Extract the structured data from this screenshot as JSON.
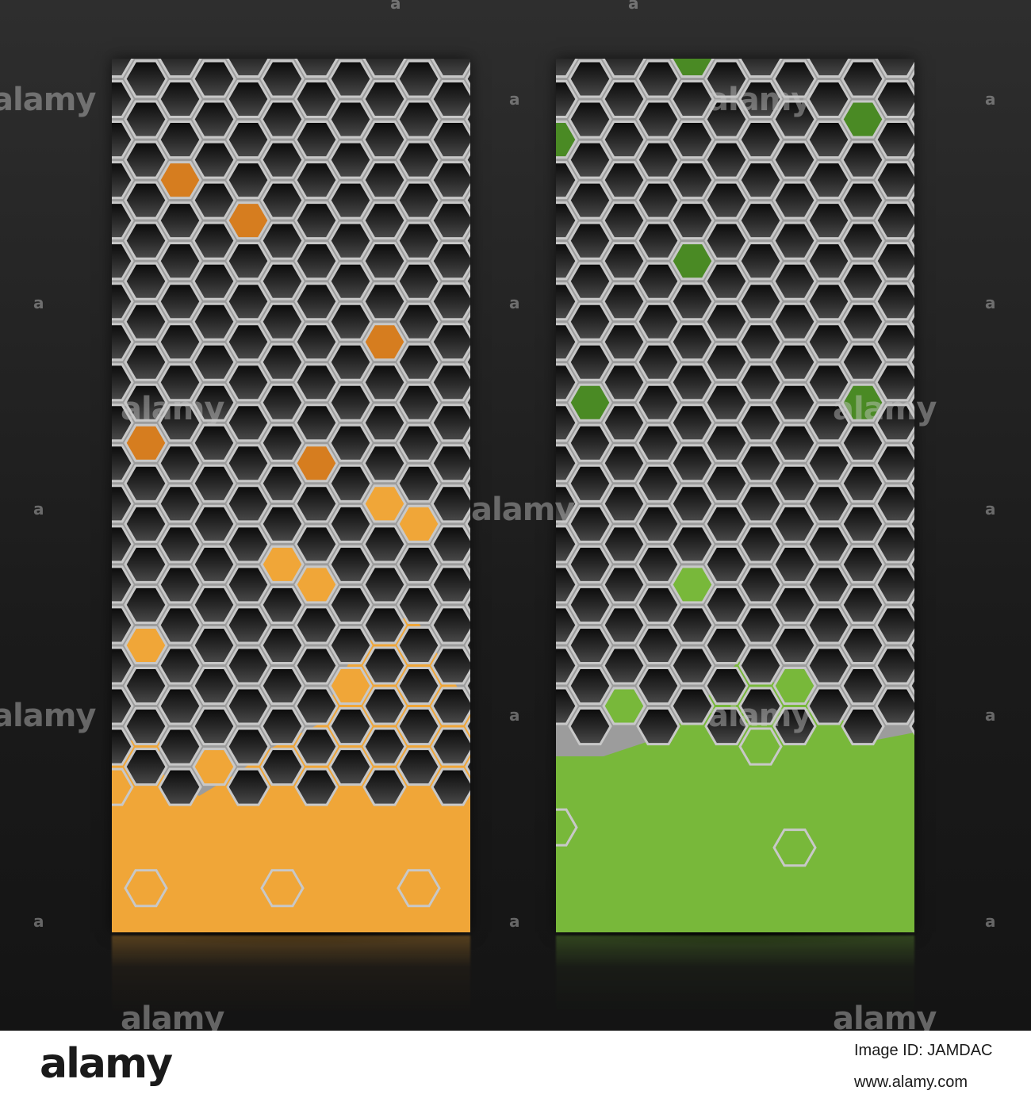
{
  "watermark": {
    "brand": "alamy",
    "letter": "a"
  },
  "banners": [
    {
      "id": "left",
      "accent_color": "#f0a638",
      "dark_accent": "#d67d1f",
      "fill_level": 0.22
    },
    {
      "id": "right",
      "accent_color": "#78b83a",
      "dark_accent": "#4a8a24",
      "fill_level": 0.27
    }
  ],
  "footer": {
    "logo": "alamy",
    "image_id": "Image ID: JAMDAC",
    "url": "www.alamy.com"
  }
}
